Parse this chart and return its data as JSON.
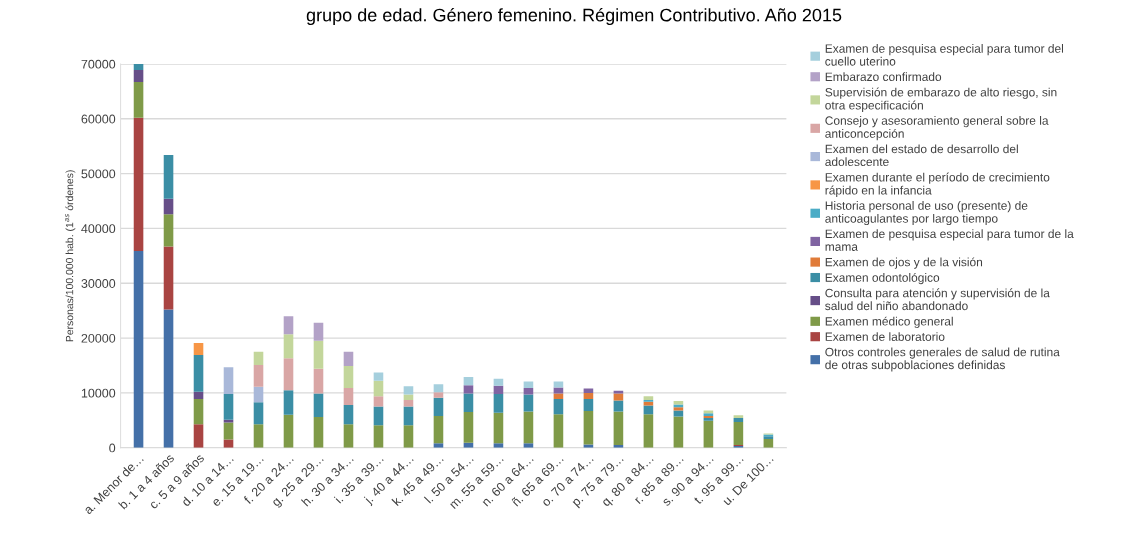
{
  "chart_data": {
    "type": "bar",
    "stacked": true,
    "title": "grupo de edad. Género femenino. Régimen Contributivo. Año 2015",
    "ylabel": "Personas/100.000 hab. (1$^{as}$ órdenes)",
    "categories": [
      "a. Menor de…",
      "b. 1 a 4 años",
      "c. 5 a 9 años",
      "d. 10 a 14…",
      "e. 15 a 19…",
      "f. 20 a 24…",
      "g. 25 a 29…",
      "h. 30 a 34…",
      "i. 35 a 39…",
      "j. 40 a 44…",
      "k. 45 a 49…",
      "l. 50 a 54…",
      "m. 55 a 59…",
      "n. 60 a 64…",
      "ñ. 65 a 69…",
      "o. 70 a 74…",
      "p. 75 a 79…",
      "q. 80 a 84…",
      "r. 85 a 89…",
      "s. 90 a 94…",
      "t. 95 a 99…",
      "u. De 100…"
    ],
    "series": [
      {
        "name": "Otros controles generales de salud de rutina de otras subpoblaciones definidas",
        "color": "#4470a8",
        "values": [
          35900,
          25200,
          null,
          null,
          null,
          null,
          null,
          null,
          null,
          null,
          800,
          900,
          800,
          800,
          null,
          600,
          500,
          null,
          null,
          null,
          300,
          null
        ]
      },
      {
        "name": "Examen de laboratorio",
        "color": "#a94442",
        "values": [
          24300,
          11500,
          4300,
          1500,
          null,
          null,
          null,
          null,
          null,
          null,
          null,
          null,
          null,
          null,
          null,
          null,
          null,
          null,
          null,
          null,
          200,
          null
        ]
      },
      {
        "name": "Examen médico general",
        "color": "#7f9a48",
        "values": [
          6500,
          5900,
          4600,
          3100,
          4300,
          6000,
          5600,
          4300,
          4100,
          4100,
          5000,
          5600,
          5600,
          5800,
          6100,
          6100,
          6100,
          6100,
          5700,
          4900,
          4200,
          1600
        ]
      },
      {
        "name": "Consulta para atención y supervisión de la salud del niño abandonado",
        "color": "#664e88",
        "values": [
          2200,
          2800,
          1300,
          500,
          null,
          null,
          null,
          null,
          null,
          null,
          null,
          null,
          null,
          null,
          null,
          null,
          null,
          null,
          null,
          null,
          null,
          null
        ]
      },
      {
        "name": "Examen odontológico",
        "color": "#3b8ea5",
        "values": [
          1100,
          8000,
          6700,
          4700,
          4000,
          4500,
          4300,
          3500,
          3400,
          3400,
          3300,
          3400,
          3400,
          3100,
          2800,
          2200,
          2000,
          1600,
          1100,
          500,
          700,
          500
        ]
      },
      {
        "name": "Examen de ojos y de la visión",
        "color": "#e07b39",
        "values": [
          null,
          null,
          null,
          null,
          null,
          null,
          null,
          null,
          null,
          null,
          null,
          null,
          null,
          null,
          1000,
          1100,
          1300,
          700,
          600,
          400,
          null,
          null
        ]
      },
      {
        "name": "Examen de pesquisa especial para tumor de la mama",
        "color": "#8064a2",
        "values": [
          null,
          null,
          null,
          null,
          null,
          null,
          null,
          null,
          null,
          null,
          null,
          1500,
          1500,
          1200,
          1100,
          800,
          500,
          null,
          null,
          null,
          null,
          null
        ]
      },
      {
        "name": "Historia personal de uso (presente) de anticoagulantes por largo tiempo",
        "color": "#4bacc6",
        "values": [
          null,
          null,
          null,
          null,
          null,
          null,
          null,
          null,
          null,
          null,
          null,
          null,
          null,
          null,
          null,
          null,
          null,
          300,
          500,
          500,
          null,
          300
        ]
      },
      {
        "name": "Examen durante el período de crecimiento rápido en la infancia",
        "color": "#f79646",
        "values": [
          null,
          null,
          2200,
          null,
          null,
          null,
          null,
          null,
          null,
          null,
          null,
          null,
          null,
          null,
          null,
          null,
          null,
          null,
          null,
          null,
          null,
          null
        ]
      },
      {
        "name": "Examen del estado de desarrollo del adolescente",
        "color": "#a9b8d9",
        "values": [
          null,
          null,
          null,
          4900,
          2800,
          null,
          null,
          null,
          null,
          null,
          null,
          null,
          null,
          null,
          null,
          null,
          null,
          null,
          null,
          null,
          null,
          null
        ]
      },
      {
        "name": "Consejo y asesoramiento general sobre la anticoncepción",
        "color": "#d9a6a5",
        "values": [
          null,
          null,
          null,
          null,
          4000,
          5800,
          4500,
          3100,
          1900,
          1200,
          1000,
          null,
          null,
          null,
          null,
          null,
          null,
          null,
          null,
          null,
          null,
          null
        ]
      },
      {
        "name": "Supervisión de embarazo de alto riesgo, sin otra especificación",
        "color": "#c3d69b",
        "values": [
          null,
          null,
          null,
          null,
          2400,
          4400,
          5100,
          4000,
          2800,
          1000,
          null,
          null,
          null,
          null,
          null,
          null,
          null,
          700,
          600,
          500,
          500,
          200
        ]
      },
      {
        "name": "Embarazo confirmado",
        "color": "#b3a2c7",
        "values": [
          null,
          null,
          null,
          null,
          null,
          3300,
          3300,
          2600,
          null,
          null,
          null,
          null,
          null,
          null,
          null,
          null,
          null,
          null,
          null,
          null,
          null,
          null
        ]
      },
      {
        "name": "Examen de pesquisa especial para tumor del cuello uterino",
        "color": "#a5cfdd",
        "values": [
          null,
          null,
          null,
          null,
          null,
          null,
          null,
          null,
          1500,
          1500,
          1500,
          1500,
          1300,
          1200,
          1100,
          null,
          null,
          null,
          null,
          null,
          null,
          null
        ]
      }
    ],
    "ylim": [
      0,
      70000
    ],
    "yticks": [
      0,
      10000,
      20000,
      30000,
      40000,
      50000,
      60000,
      70000
    ],
    "grid": "y",
    "legend": "right"
  }
}
